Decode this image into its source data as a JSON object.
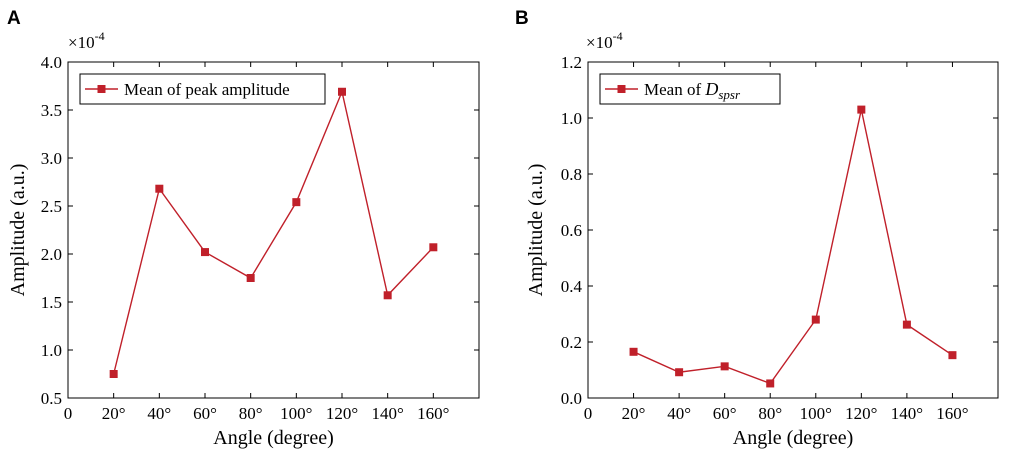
{
  "figure": {
    "background": "#ffffff",
    "series_color": "#c0202a",
    "axis_color": "#000000"
  },
  "chart_data": [
    {
      "type": "line",
      "panel_label": "A",
      "title": "",
      "xlabel": "Angle (degree)",
      "ylabel": "Amplitude (a.u.)",
      "y_multiplier": {
        "base": "×10",
        "exponent": "-4"
      },
      "xlim": [
        0,
        180
      ],
      "ylim": [
        0.5,
        4.0
      ],
      "x_ticks": [
        0,
        20,
        40,
        60,
        80,
        100,
        120,
        140,
        160
      ],
      "x_tick_labels": [
        "0",
        "20°",
        "40°",
        "60°",
        "80°",
        "100°",
        "120°",
        "140°",
        "160°"
      ],
      "y_ticks": [
        0.5,
        1.0,
        1.5,
        2.0,
        2.5,
        3.0,
        3.5,
        4.0
      ],
      "y_tick_labels": [
        "0.5",
        "1.0",
        "1.5",
        "2.0",
        "2.5",
        "3.0",
        "3.5",
        "4.0"
      ],
      "grid": false,
      "legend_position": "top-left",
      "series": [
        {
          "name": "Mean of peak amplitude",
          "legend_parts": [
            {
              "text": "Mean of peak amplitude",
              "style": "plain"
            }
          ],
          "marker": "square",
          "x": [
            20,
            40,
            60,
            80,
            100,
            120,
            140,
            160
          ],
          "values": [
            0.75,
            2.68,
            2.02,
            1.75,
            2.54,
            3.69,
            1.57,
            2.07
          ]
        }
      ]
    },
    {
      "type": "line",
      "panel_label": "B",
      "title": "",
      "xlabel": "Angle (degree)",
      "ylabel": "Amplitude (a.u.)",
      "y_multiplier": {
        "base": "×10",
        "exponent": "-4"
      },
      "xlim": [
        0,
        180
      ],
      "ylim": [
        0.0,
        1.2
      ],
      "x_ticks": [
        0,
        20,
        40,
        60,
        80,
        100,
        120,
        140,
        160
      ],
      "x_tick_labels": [
        "0",
        "20°",
        "40°",
        "60°",
        "80°",
        "100°",
        "120°",
        "140°",
        "160°"
      ],
      "y_ticks": [
        0.0,
        0.2,
        0.4,
        0.6,
        0.8,
        1.0,
        1.2
      ],
      "y_tick_labels": [
        "0.0",
        "0.2",
        "0.4",
        "0.6",
        "0.8",
        "1.0",
        "1.2"
      ],
      "grid": false,
      "legend_position": "top-left",
      "series": [
        {
          "name": "Mean of D_spsr",
          "legend_parts": [
            {
              "text": "Mean of ",
              "style": "plain"
            },
            {
              "text": "D",
              "style": "math"
            },
            {
              "text": "spsr",
              "style": "math-sub"
            }
          ],
          "marker": "square",
          "x": [
            20,
            40,
            60,
            80,
            100,
            120,
            140,
            160
          ],
          "values": [
            0.165,
            0.092,
            0.113,
            0.052,
            0.28,
            1.03,
            0.262,
            0.153
          ]
        }
      ]
    }
  ]
}
